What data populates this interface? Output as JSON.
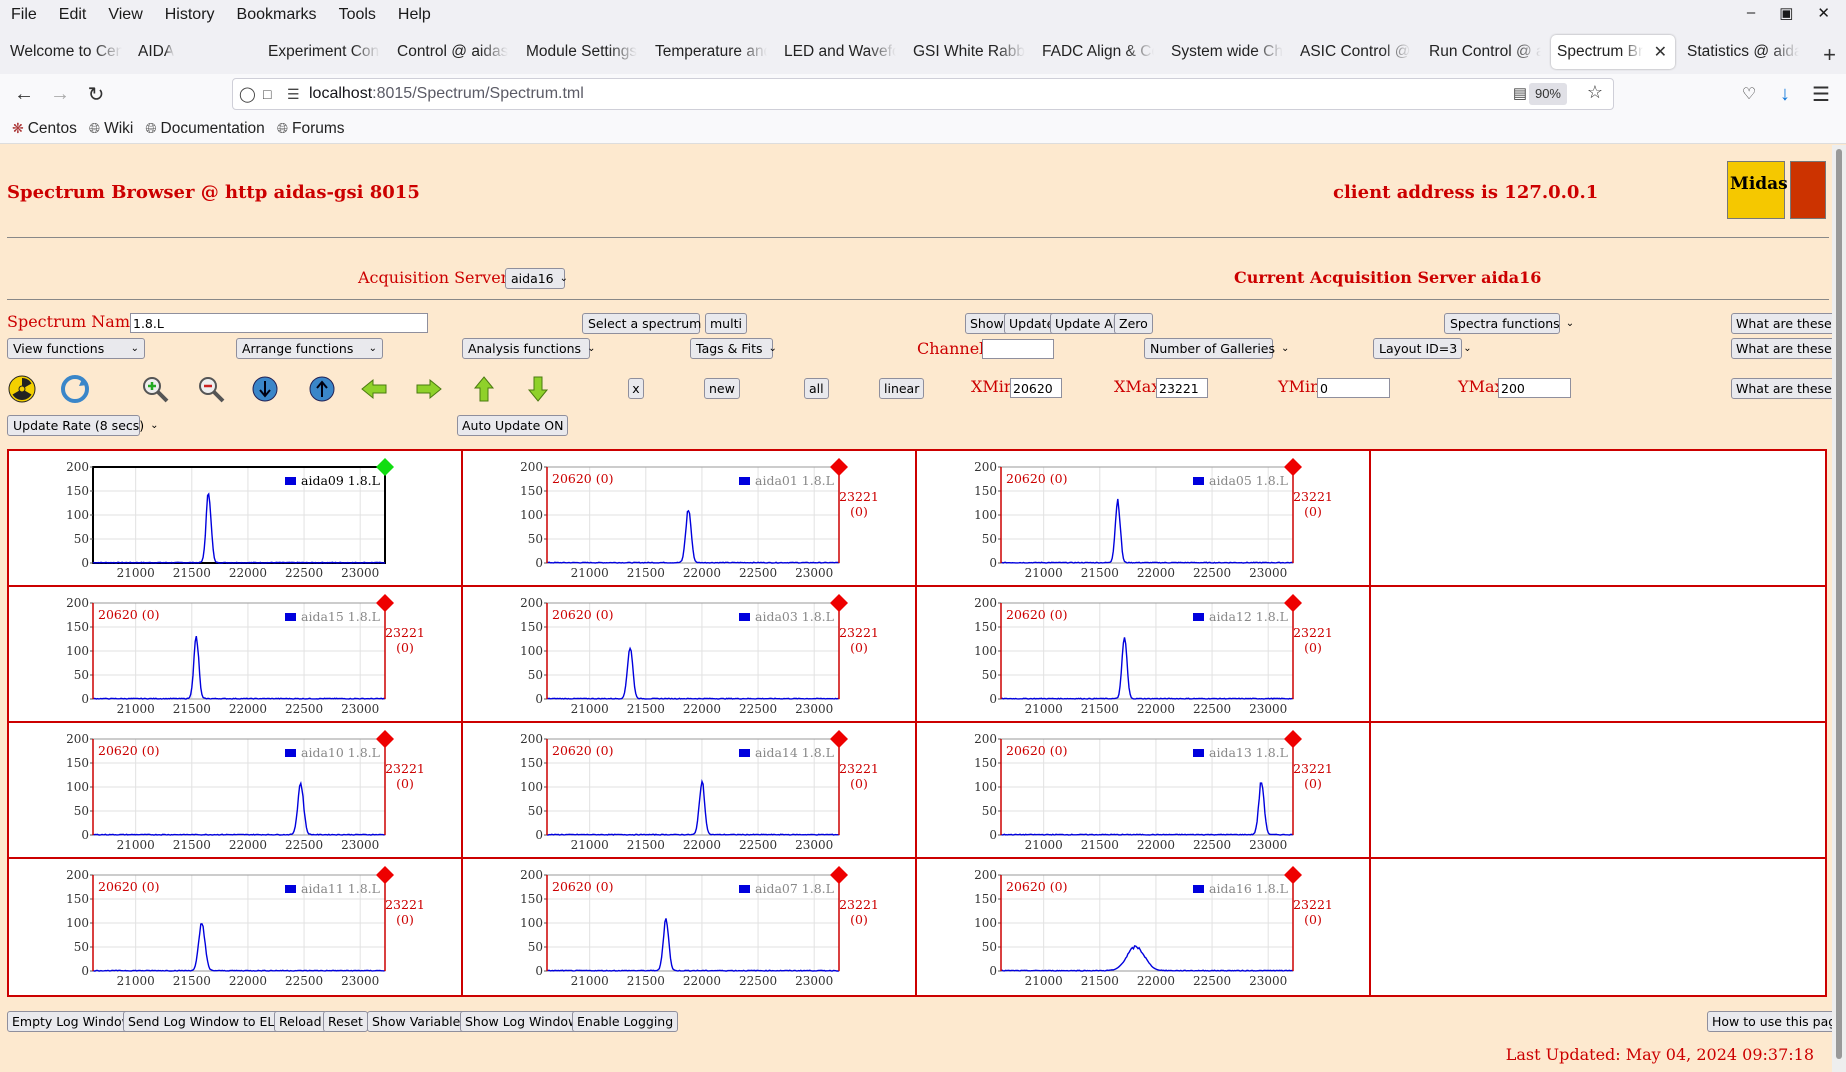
{
  "menubar": {
    "items": [
      "File",
      "Edit",
      "View",
      "History",
      "Bookmarks",
      "Tools",
      "Help"
    ]
  },
  "tabs": [
    {
      "label": "Welcome to Cen"
    },
    {
      "label": "AIDA"
    },
    {
      "label": "Experiment Cont"
    },
    {
      "label": "Control @ aidas"
    },
    {
      "label": "Module Settings"
    },
    {
      "label": "Temperature and"
    },
    {
      "label": "LED and Wavefo"
    },
    {
      "label": "GSI White Rabbi"
    },
    {
      "label": "FADC Align & Co"
    },
    {
      "label": "System wide Ch"
    },
    {
      "label": "ASIC Control @"
    },
    {
      "label": "Run Control @ a"
    },
    {
      "label": "Spectrum Brow",
      "active": true
    },
    {
      "label": "Statistics @ aida"
    }
  ],
  "navbar": {
    "url_host": "localhost",
    "url_rest": ":8015/Spectrum/Spectrum.tml",
    "zoom": "90%"
  },
  "bookmarks": [
    "Centos",
    "Wiki",
    "Documentation",
    "Forums"
  ],
  "header": {
    "title": "Spectrum Browser @ http aidas-gsi 8015",
    "client": "client address is 127.0.0.1",
    "logo_text": "Midas",
    "acq_servers_label": "Acquisition Servers",
    "acq_server_value": "aida16",
    "current_server": "Current Acquisition Server aida16"
  },
  "controls": {
    "spectrum_name_label": "Spectrum Name:",
    "spectrum_name_value": "1.8.L",
    "select_spectrum": "Select a spectrum",
    "multi": "multi",
    "show": "Show",
    "update": "Update",
    "update_all": "Update All",
    "zero": "Zero",
    "spectra_functions": "Spectra functions",
    "what_are_these": "What are these?",
    "view_functions": "View functions",
    "arrange_functions": "Arrange functions",
    "analysis_functions": "Analysis functions",
    "tags_fits": "Tags & Fits",
    "channel_label": "Channel:",
    "channel_value": "",
    "number_of_galleries": "Number of Galleries",
    "layout": "Layout ID=3",
    "x_btn": "x",
    "new_btn": "new",
    "all_btn": "all",
    "linear_btn": "linear",
    "xmin_label": "XMin",
    "xmin_value": "20620",
    "xmax_label": "XMax",
    "xmax_value": "23221",
    "ymin_label": "YMin",
    "ymin_value": "0",
    "ymax_label": "YMax",
    "ymax_value": "200",
    "update_rate": "Update Rate (8 secs)",
    "auto_update": "Auto Update ON"
  },
  "spectra": [
    {
      "name": "aida09 1.8.L",
      "active": true,
      "peak": 21650,
      "height": 148,
      "width": 22
    },
    {
      "name": "aida01 1.8.L",
      "active": false,
      "peak": 21880,
      "height": 112,
      "width": 24
    },
    {
      "name": "aida05 1.8.L",
      "active": false,
      "peak": 21660,
      "height": 132,
      "width": 22
    },
    {
      "name": "aida15 1.8.L",
      "active": false,
      "peak": 21540,
      "height": 128,
      "width": 22
    },
    {
      "name": "aida03 1.8.L",
      "active": false,
      "peak": 21360,
      "height": 108,
      "width": 24
    },
    {
      "name": "aida12 1.8.L",
      "active": false,
      "peak": 21720,
      "height": 128,
      "width": 22
    },
    {
      "name": "aida10 1.8.L",
      "active": false,
      "peak": 22470,
      "height": 108,
      "width": 26
    },
    {
      "name": "aida14 1.8.L",
      "active": false,
      "peak": 22000,
      "height": 110,
      "width": 24
    },
    {
      "name": "aida13 1.8.L",
      "active": false,
      "peak": 22940,
      "height": 110,
      "width": 24
    },
    {
      "name": "aida11 1.8.L",
      "active": false,
      "peak": 21590,
      "height": 100,
      "width": 28
    },
    {
      "name": "aida07 1.8.L",
      "active": false,
      "peak": 21680,
      "height": 110,
      "width": 24
    },
    {
      "name": "aida16 1.8.L",
      "active": false,
      "peak": 21820,
      "height": 50,
      "width": 80
    }
  ],
  "plot": {
    "xmin": 20620,
    "xmax": 23221,
    "ymin": 0,
    "ymax": 200,
    "xticks": [
      "21000",
      "21500",
      "22000",
      "22500",
      "23000"
    ],
    "yticks": [
      "200",
      "150",
      "100",
      "50",
      "0"
    ],
    "left_label": "20620 (0)",
    "right_label_top": "23221",
    "right_label_bottom": "(0)",
    "series_color": "#0000dd"
  },
  "footer": {
    "buttons": [
      "Empty Log Window",
      "Send Log Window to ELog",
      "Reload",
      "Reset",
      "Show Variables",
      "Show Log Window",
      "Enable Logging"
    ],
    "how_to": "How to use this page",
    "last_updated": "Last Updated: May 04, 2024 09:37:18"
  }
}
